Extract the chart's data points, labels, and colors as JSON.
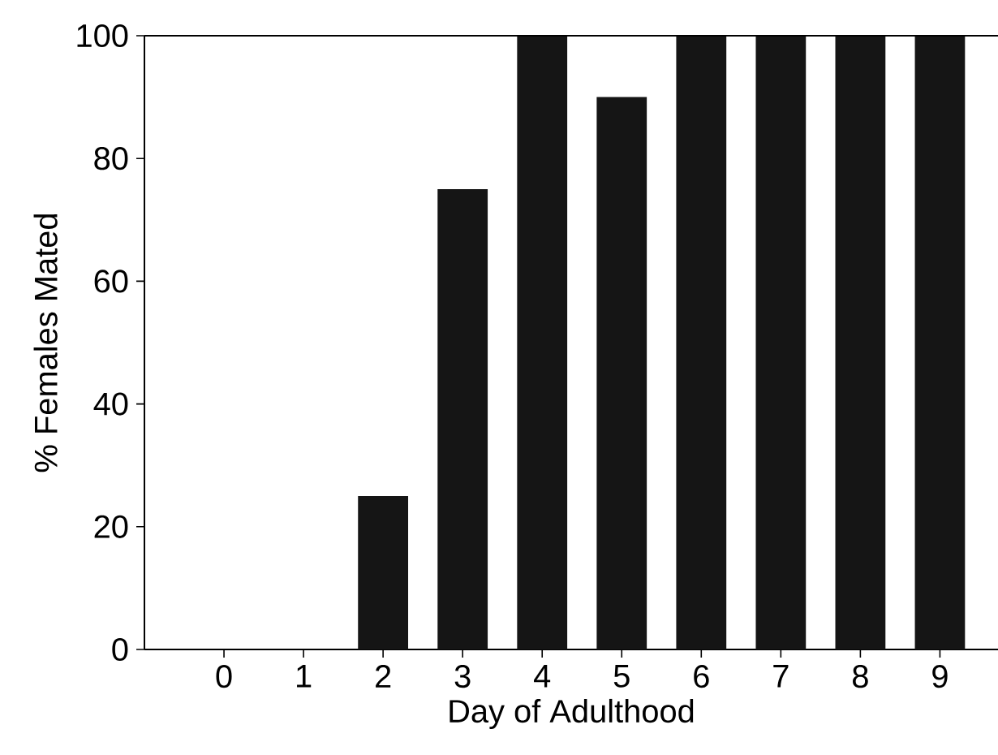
{
  "chart_data": {
    "type": "bar",
    "xlabel": "Day of Adulthood",
    "ylabel": "% Females Mated",
    "categories": [
      "0",
      "1",
      "2",
      "3",
      "4",
      "5",
      "6",
      "7",
      "8",
      "9"
    ],
    "values": [
      0,
      0,
      25,
      75,
      100,
      90,
      100,
      100,
      100,
      100
    ],
    "color": "#151515",
    "ylim": [
      0,
      100
    ],
    "yticks": [
      0,
      20,
      40,
      60,
      80,
      100
    ]
  }
}
